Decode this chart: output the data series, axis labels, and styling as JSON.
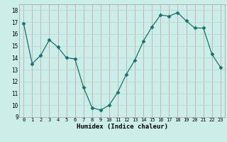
{
  "x": [
    0,
    1,
    2,
    3,
    4,
    5,
    6,
    7,
    8,
    9,
    10,
    11,
    12,
    13,
    14,
    15,
    16,
    17,
    18,
    19,
    20,
    21,
    22,
    23
  ],
  "y": [
    16.9,
    13.5,
    14.2,
    15.5,
    14.9,
    14.0,
    13.9,
    11.5,
    9.8,
    9.6,
    10.0,
    11.1,
    12.6,
    13.8,
    15.4,
    16.6,
    17.6,
    17.5,
    17.8,
    17.1,
    16.5,
    16.5,
    14.3,
    13.2
  ],
  "xlim": [
    -0.5,
    23.5
  ],
  "ylim": [
    9,
    18.5
  ],
  "yticks": [
    9,
    10,
    11,
    12,
    13,
    14,
    15,
    16,
    17,
    18
  ],
  "xticks": [
    0,
    1,
    2,
    3,
    4,
    5,
    6,
    7,
    8,
    9,
    10,
    11,
    12,
    13,
    14,
    15,
    16,
    17,
    18,
    19,
    20,
    21,
    22,
    23
  ],
  "xlabel": "Humidex (Indice chaleur)",
  "line_color": "#1a7070",
  "marker": "D",
  "marker_size": 2.5,
  "bg_color": "#cceee8",
  "grid_color": "#b8d8d0",
  "grid_major_color": "#c8a8a8"
}
